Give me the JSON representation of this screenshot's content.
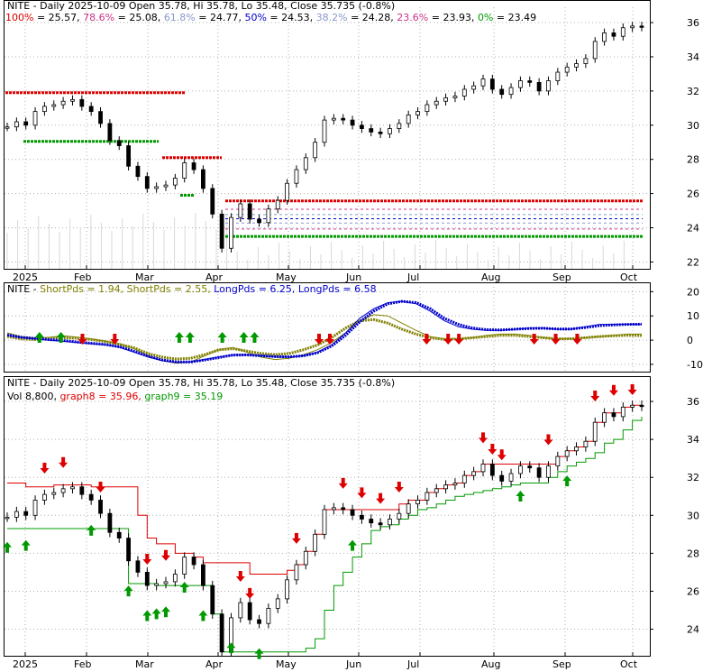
{
  "chart_data": [
    {
      "type": "line",
      "panel": "price-fibonacci",
      "ticker": "NITE",
      "title": "NITE - Daily 2025-10-09 Open 35.78, Hi 35.78, Lo 35.48, Close 35.735 (-0.8%)",
      "fib_levels": [
        {
          "label": "100%",
          "value": "25.57",
          "level": 25.57,
          "color": "#dd0000"
        },
        {
          "label": "78.6%",
          "value": "25.08",
          "level": 25.08,
          "color": "#cc3388"
        },
        {
          "label": "61.8%",
          "value": "24.77",
          "level": 24.77,
          "color": "#8899cc"
        },
        {
          "label": "50%",
          "value": "24.53",
          "level": 24.53,
          "color": "#0000cc"
        },
        {
          "label": "38.2%",
          "value": "24.28",
          "level": 24.28,
          "color": "#8899cc"
        },
        {
          "label": "23.6%",
          "value": "23.93",
          "level": 23.93,
          "color": "#cc3388"
        },
        {
          "label": "0%",
          "value": "23.49",
          "level": 23.49,
          "color": "#009900"
        }
      ],
      "x_tick_labels": [
        "2025",
        "Feb",
        "Mar",
        "Apr",
        "May",
        "Jun",
        "Jul",
        "Aug",
        "Sep",
        "Oct"
      ],
      "y_tick_labels": [
        "36",
        "34",
        "32",
        "30",
        "28",
        "26",
        "24",
        "22"
      ],
      "ylim": [
        21.6,
        36.9
      ],
      "grid": true,
      "series": [
        {
          "values": [
            29.9,
            30.2,
            30.0,
            30.8,
            31.1,
            31.2,
            31.4,
            31.5,
            31.1,
            30.8,
            30.1,
            29.1,
            28.8,
            27.6,
            27.0,
            26.3,
            26.4,
            26.5,
            26.9,
            27.8,
            27.4,
            26.3,
            24.8,
            22.8,
            24.6,
            25.4,
            24.5,
            24.3,
            25.1,
            25.6,
            26.6,
            27.4,
            28.1,
            29.0,
            30.3,
            30.4,
            30.3,
            30.0,
            29.8,
            29.6,
            29.5,
            29.8,
            30.1,
            30.6,
            30.8,
            31.2,
            31.4,
            31.6,
            31.7,
            32.1,
            32.3,
            32.7,
            32.1,
            31.8,
            32.2,
            32.6,
            32.5,
            32.0,
            32.6,
            33.1,
            33.4,
            33.6,
            33.9,
            34.9,
            35.4,
            35.2,
            35.7,
            35.8,
            35.74
          ]
        }
      ]
    },
    {
      "type": "line",
      "panel": "period-oscillator",
      "title": "NITE - ShortPds = 1.94, ShortPds = 2.55, LongPds = 6.25, LongPds = 6.58",
      "legend": [
        {
          "label": "NITE - ",
          "color": "#000000"
        },
        {
          "label": "ShortPds = 1.94",
          "color": "#808000"
        },
        {
          "label": "ShortPds = 2.55",
          "color": "#808000"
        },
        {
          "label": "LongPds = 6.25",
          "color": "#0000cc"
        },
        {
          "label": "LongPds = 6.58",
          "color": "#0000cc"
        }
      ],
      "y_tick_labels": [
        "20",
        "10",
        "0",
        "-10"
      ],
      "ylim": [
        -13,
        22
      ],
      "grid": true,
      "series": [
        {
          "values": [
            3.0,
            1.5,
            0.8,
            1.2,
            1.8,
            1.2,
            0.5,
            -0.5,
            -1.6,
            -3.5,
            -6.5,
            -8.5,
            -9.5,
            -9.0,
            -6.5,
            -4.0,
            -3.0,
            -5.0,
            -7.0,
            -8.0,
            -7.5,
            -6.0,
            -4.0,
            -1.0,
            3.0,
            8.0,
            10.5,
            10.0,
            7.0,
            4.0,
            1.5,
            0.5,
            0.5,
            1.0,
            2.0,
            2.5,
            2.5,
            2.0,
            1.0,
            0.5,
            0.5,
            1.0,
            1.5,
            2.0,
            2.5,
            2.5
          ]
        },
        {
          "values": [
            1.5,
            0.5,
            0.2,
            0.7,
            1.0,
            0.8,
            0.2,
            -0.6,
            -1.8,
            -3.2,
            -5.5,
            -7.0,
            -7.8,
            -7.5,
            -6.0,
            -4.0,
            -3.5,
            -4.5,
            -5.5,
            -6.0,
            -5.5,
            -4.0,
            -2.0,
            1.0,
            5.0,
            8.0,
            8.5,
            7.0,
            4.5,
            2.5,
            1.0,
            0.3,
            0.5,
            1.0,
            1.5,
            2.0,
            2.0,
            1.5,
            1.0,
            0.5,
            0.6,
            1.0,
            1.5,
            1.8,
            2.0,
            1.9
          ]
        },
        {
          "values": [
            2.0,
            1.0,
            0.5,
            0.0,
            -0.5,
            -1.0,
            -1.5,
            -2.0,
            -3.0,
            -5.0,
            -7.0,
            -8.5,
            -9.2,
            -9.0,
            -8.0,
            -7.0,
            -6.0,
            -6.0,
            -6.5,
            -7.0,
            -7.0,
            -6.5,
            -5.0,
            -2.0,
            3.0,
            9.0,
            13.0,
            15.5,
            16.0,
            15.0,
            12.0,
            8.0,
            5.5,
            4.5,
            4.0,
            4.0,
            4.5,
            5.0,
            5.0,
            4.5,
            4.5,
            5.5,
            6.5,
            6.5,
            6.5,
            6.5
          ]
        },
        {
          "values": [
            2.2,
            1.2,
            0.7,
            0.2,
            -0.2,
            -0.8,
            -1.3,
            -1.8,
            -2.8,
            -4.6,
            -6.6,
            -8.2,
            -9.0,
            -9.0,
            -8.2,
            -7.2,
            -6.2,
            -6.1,
            -6.4,
            -6.8,
            -6.9,
            -6.5,
            -5.2,
            -2.5,
            2.0,
            7.5,
            12.0,
            15.0,
            16.0,
            15.5,
            13.0,
            9.0,
            6.5,
            5.0,
            4.3,
            4.2,
            4.5,
            4.8,
            4.9,
            4.6,
            4.6,
            5.2,
            6.0,
            6.3,
            6.5,
            6.6
          ]
        }
      ],
      "up_arrows": [
        3,
        5,
        16,
        17,
        20,
        22,
        23
      ],
      "down_arrows": [
        7,
        10,
        29,
        30,
        39,
        41,
        42,
        49,
        51,
        53
      ]
    },
    {
      "type": "line",
      "panel": "price-bands",
      "title": "NITE - Daily 2025-10-09 Open 35.78, Hi 35.78, Lo 35.48, Close 35.735 (-0.8%)",
      "legend": [
        {
          "label": "Vol 8,800",
          "color": "#000000"
        },
        {
          "label": "graph8 = 35.96",
          "color": "#dd0000"
        },
        {
          "label": "graph9 = 35.19",
          "color": "#009900"
        }
      ],
      "x_tick_labels": [
        "2025",
        "Feb",
        "Mar",
        "Apr",
        "May",
        "Jun",
        "Jul",
        "Aug",
        "Sep",
        "Oct"
      ],
      "y_tick_labels": [
        "36",
        "34",
        "32",
        "30",
        "28",
        "26",
        "24"
      ],
      "ylim": [
        22.6,
        37.0
      ],
      "grid": true,
      "series": [
        {
          "values": [
            29.9,
            30.2,
            30.0,
            30.8,
            31.1,
            31.2,
            31.4,
            31.5,
            31.1,
            30.8,
            30.1,
            29.1,
            28.8,
            27.6,
            27.0,
            26.3,
            26.4,
            26.5,
            26.9,
            27.8,
            27.4,
            26.3,
            24.8,
            22.8,
            24.6,
            25.4,
            24.5,
            24.3,
            25.1,
            25.6,
            26.6,
            27.4,
            28.1,
            29.0,
            30.3,
            30.4,
            30.3,
            30.0,
            29.8,
            29.6,
            29.5,
            29.8,
            30.1,
            30.6,
            30.8,
            31.2,
            31.4,
            31.6,
            31.7,
            32.1,
            32.3,
            32.7,
            32.1,
            31.8,
            32.2,
            32.6,
            32.5,
            32.0,
            32.6,
            33.1,
            33.4,
            33.6,
            33.9,
            34.9,
            35.4,
            35.2,
            35.7,
            35.8,
            35.74
          ]
        },
        {
          "values": [
            31.7,
            31.7,
            31.5,
            31.5,
            31.5,
            31.6,
            31.6,
            31.6,
            31.6,
            31.5,
            31.5,
            31.5,
            31.5,
            31.5,
            30.0,
            28.8,
            28.5,
            28.5,
            28.0,
            28.0,
            27.8,
            27.5,
            27.5,
            27.5,
            27.5,
            27.5,
            26.9,
            26.9,
            26.9,
            26.9,
            27.1,
            27.4,
            28.1,
            29.0,
            30.3,
            30.3,
            30.3,
            30.3,
            30.3,
            30.3,
            30.3,
            30.3,
            30.6,
            30.8,
            30.8,
            31.2,
            31.4,
            31.6,
            31.7,
            32.1,
            32.3,
            32.7,
            32.7,
            32.7,
            32.7,
            32.7,
            32.7,
            32.7,
            32.7,
            33.1,
            33.4,
            33.6,
            33.9,
            34.9,
            35.4,
            35.4,
            35.7,
            35.8,
            35.96
          ]
        },
        {
          "values": [
            29.3,
            29.3,
            29.3,
            29.3,
            29.3,
            29.3,
            29.3,
            29.3,
            29.3,
            29.3,
            29.3,
            29.3,
            29.3,
            26.4,
            26.4,
            26.4,
            26.3,
            26.3,
            26.3,
            26.3,
            26.3,
            26.3,
            24.8,
            22.8,
            22.8,
            22.8,
            22.8,
            22.8,
            22.8,
            22.8,
            22.8,
            22.8,
            23.0,
            23.5,
            25.0,
            26.3,
            27.0,
            27.8,
            28.5,
            29.2,
            29.4,
            29.5,
            29.8,
            30.0,
            30.3,
            30.4,
            30.6,
            30.8,
            31.0,
            31.1,
            31.2,
            31.3,
            31.4,
            31.5,
            31.6,
            31.7,
            31.7,
            31.7,
            32.0,
            32.3,
            32.6,
            32.8,
            33.0,
            33.3,
            33.8,
            34.0,
            34.5,
            35.0,
            35.19
          ]
        }
      ],
      "up_arrows": [
        0,
        2,
        9,
        13,
        15,
        16,
        17,
        19,
        21,
        24,
        27,
        37,
        55,
        60
      ],
      "down_arrows": [
        4,
        6,
        10,
        15,
        17,
        25,
        26,
        31,
        36,
        38,
        40,
        42,
        51,
        52,
        53,
        58,
        63,
        65,
        67
      ]
    }
  ]
}
